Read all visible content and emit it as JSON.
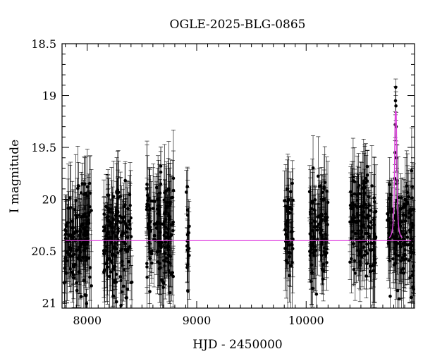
{
  "chart_data": {
    "type": "scatter",
    "title": "OGLE-2025-BLG-0865",
    "xlabel": "HJD - 2450000",
    "ylabel": "I magnitude",
    "xlim": [
      7770,
      10990
    ],
    "ylim": [
      21.05,
      18.5
    ],
    "y_inverted": true,
    "x_ticks": [
      8000,
      9000,
      10000
    ],
    "y_ticks": [
      18.5,
      19,
      19.5,
      20,
      20.5,
      21
    ],
    "y_tick_labels": [
      "18.5",
      "19",
      "19.5",
      "20",
      "20.5",
      "21"
    ],
    "baseline_mag": 20.4,
    "point_color": "#000000",
    "model_color": "#e040e0",
    "grid": false,
    "series": [
      {
        "kind": "observations",
        "seasons": [
          {
            "x_start": 7790,
            "x_end": 8040,
            "mag_center": 20.4,
            "mag_spread": 0.55
          },
          {
            "x_start": 8150,
            "x_end": 8410,
            "mag_center": 20.4,
            "mag_spread": 0.55
          },
          {
            "x_start": 8540,
            "x_end": 8790,
            "mag_center": 20.3,
            "mag_spread": 0.55
          },
          {
            "x_start": 8905,
            "x_end": 8935,
            "mag_center": 20.35,
            "mag_spread": 0.5
          },
          {
            "x_start": 9800,
            "x_end": 9880,
            "mag_center": 20.3,
            "mag_spread": 0.55
          },
          {
            "x_start": 10030,
            "x_end": 10200,
            "mag_center": 20.3,
            "mag_spread": 0.55
          },
          {
            "x_start": 10400,
            "x_end": 10640,
            "mag_center": 20.25,
            "mag_spread": 0.55
          },
          {
            "x_start": 10740,
            "x_end": 10990,
            "mag_center": 20.35,
            "mag_spread": 0.55
          }
        ],
        "peak_points": [
          {
            "x": 10818,
            "y": 18.92
          },
          {
            "x": 10816,
            "y": 19.05
          },
          {
            "x": 10820,
            "y": 19.1
          },
          {
            "x": 10814,
            "y": 19.28
          },
          {
            "x": 10822,
            "y": 19.3
          },
          {
            "x": 10812,
            "y": 19.55
          },
          {
            "x": 10825,
            "y": 19.6
          },
          {
            "x": 10809,
            "y": 19.8
          },
          {
            "x": 10828,
            "y": 19.85
          }
        ]
      },
      {
        "kind": "model",
        "t0": 10818,
        "peak_mag": 19.15,
        "width_days": 9
      }
    ]
  }
}
